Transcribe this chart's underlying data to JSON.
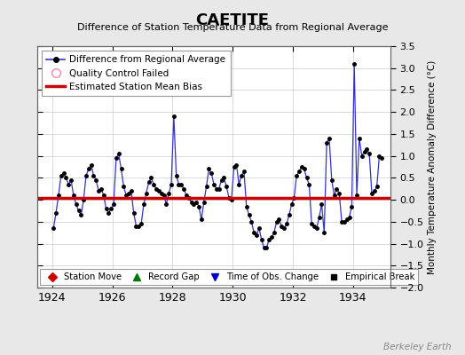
{
  "title": "CAETITE",
  "subtitle": "Difference of Station Temperature Data from Regional Average",
  "ylabel": "Monthly Temperature Anomaly Difference (°C)",
  "bias": 0.05,
  "ylim": [
    -2.0,
    3.5
  ],
  "xlim": [
    1923.5,
    1935.25
  ],
  "xticks": [
    1924,
    1926,
    1928,
    1930,
    1932,
    1934
  ],
  "yticks": [
    -2.0,
    -1.5,
    -1.0,
    -0.5,
    0.0,
    0.5,
    1.0,
    1.5,
    2.0,
    2.5,
    3.0,
    3.5
  ],
  "background_color": "#e8e8e8",
  "plot_bg_color": "#ffffff",
  "line_color": "#3333cc",
  "marker_color": "#000000",
  "bias_color": "#cc0000",
  "watermark": "Berkeley Earth",
  "time_series": [
    [
      1924.042,
      -0.65
    ],
    [
      1924.125,
      -0.3
    ],
    [
      1924.208,
      0.1
    ],
    [
      1924.292,
      0.55
    ],
    [
      1924.375,
      0.6
    ],
    [
      1924.458,
      0.5
    ],
    [
      1924.542,
      0.35
    ],
    [
      1924.625,
      0.45
    ],
    [
      1924.708,
      0.1
    ],
    [
      1924.792,
      -0.1
    ],
    [
      1924.875,
      -0.25
    ],
    [
      1924.958,
      -0.35
    ],
    [
      1925.042,
      0.0
    ],
    [
      1925.125,
      0.55
    ],
    [
      1925.208,
      0.7
    ],
    [
      1925.292,
      0.8
    ],
    [
      1925.375,
      0.55
    ],
    [
      1925.458,
      0.45
    ],
    [
      1925.542,
      0.2
    ],
    [
      1925.625,
      0.25
    ],
    [
      1925.708,
      0.1
    ],
    [
      1925.792,
      -0.2
    ],
    [
      1925.875,
      -0.3
    ],
    [
      1925.958,
      -0.2
    ],
    [
      1926.042,
      -0.1
    ],
    [
      1926.125,
      0.95
    ],
    [
      1926.208,
      1.05
    ],
    [
      1926.292,
      0.7
    ],
    [
      1926.375,
      0.3
    ],
    [
      1926.458,
      0.1
    ],
    [
      1926.542,
      0.15
    ],
    [
      1926.625,
      0.2
    ],
    [
      1926.708,
      -0.3
    ],
    [
      1926.792,
      -0.6
    ],
    [
      1926.875,
      -0.6
    ],
    [
      1926.958,
      -0.55
    ],
    [
      1927.042,
      -0.1
    ],
    [
      1927.125,
      0.15
    ],
    [
      1927.208,
      0.4
    ],
    [
      1927.292,
      0.5
    ],
    [
      1927.375,
      0.35
    ],
    [
      1927.458,
      0.25
    ],
    [
      1927.542,
      0.2
    ],
    [
      1927.625,
      0.15
    ],
    [
      1927.708,
      0.1
    ],
    [
      1927.792,
      -0.1
    ],
    [
      1927.875,
      0.15
    ],
    [
      1927.958,
      0.35
    ],
    [
      1928.042,
      1.9
    ],
    [
      1928.125,
      0.55
    ],
    [
      1928.208,
      0.35
    ],
    [
      1928.292,
      0.35
    ],
    [
      1928.375,
      0.25
    ],
    [
      1928.458,
      0.1
    ],
    [
      1928.542,
      0.05
    ],
    [
      1928.625,
      -0.05
    ],
    [
      1928.708,
      -0.1
    ],
    [
      1928.792,
      -0.05
    ],
    [
      1928.875,
      -0.15
    ],
    [
      1928.958,
      -0.45
    ],
    [
      1929.042,
      -0.05
    ],
    [
      1929.125,
      0.3
    ],
    [
      1929.208,
      0.7
    ],
    [
      1929.292,
      0.6
    ],
    [
      1929.375,
      0.35
    ],
    [
      1929.458,
      0.25
    ],
    [
      1929.542,
      0.25
    ],
    [
      1929.625,
      0.45
    ],
    [
      1929.708,
      0.5
    ],
    [
      1929.792,
      0.3
    ],
    [
      1929.875,
      0.05
    ],
    [
      1929.958,
      0.0
    ],
    [
      1930.042,
      0.75
    ],
    [
      1930.125,
      0.8
    ],
    [
      1930.208,
      0.35
    ],
    [
      1930.292,
      0.55
    ],
    [
      1930.375,
      0.65
    ],
    [
      1930.458,
      -0.15
    ],
    [
      1930.542,
      -0.35
    ],
    [
      1930.625,
      -0.5
    ],
    [
      1930.708,
      -0.75
    ],
    [
      1930.792,
      -0.8
    ],
    [
      1930.875,
      -0.65
    ],
    [
      1930.958,
      -0.9
    ],
    [
      1931.042,
      -1.1
    ],
    [
      1931.125,
      -1.1
    ],
    [
      1931.208,
      -0.9
    ],
    [
      1931.292,
      -0.85
    ],
    [
      1931.375,
      -0.75
    ],
    [
      1931.458,
      -0.5
    ],
    [
      1931.542,
      -0.45
    ],
    [
      1931.625,
      -0.6
    ],
    [
      1931.708,
      -0.65
    ],
    [
      1931.792,
      -0.55
    ],
    [
      1931.875,
      -0.35
    ],
    [
      1931.958,
      -0.1
    ],
    [
      1932.042,
      0.05
    ],
    [
      1932.125,
      0.55
    ],
    [
      1932.208,
      0.65
    ],
    [
      1932.292,
      0.75
    ],
    [
      1932.375,
      0.7
    ],
    [
      1932.458,
      0.5
    ],
    [
      1932.542,
      0.35
    ],
    [
      1932.625,
      -0.55
    ],
    [
      1932.708,
      -0.6
    ],
    [
      1932.792,
      -0.65
    ],
    [
      1932.875,
      -0.4
    ],
    [
      1932.958,
      -0.1
    ],
    [
      1933.042,
      -0.75
    ],
    [
      1933.125,
      1.3
    ],
    [
      1933.208,
      1.4
    ],
    [
      1933.292,
      0.45
    ],
    [
      1933.375,
      0.1
    ],
    [
      1933.458,
      0.25
    ],
    [
      1933.542,
      0.15
    ],
    [
      1933.625,
      -0.5
    ],
    [
      1933.708,
      -0.5
    ],
    [
      1933.792,
      -0.45
    ],
    [
      1933.875,
      -0.4
    ],
    [
      1933.958,
      -0.15
    ],
    [
      1934.042,
      3.1
    ],
    [
      1934.125,
      0.1
    ],
    [
      1934.208,
      1.4
    ],
    [
      1934.292,
      1.0
    ],
    [
      1934.375,
      1.1
    ],
    [
      1934.458,
      1.15
    ],
    [
      1934.542,
      1.05
    ],
    [
      1934.625,
      0.15
    ],
    [
      1934.708,
      0.2
    ],
    [
      1934.792,
      0.3
    ],
    [
      1934.875,
      1.0
    ],
    [
      1934.958,
      0.95
    ]
  ]
}
